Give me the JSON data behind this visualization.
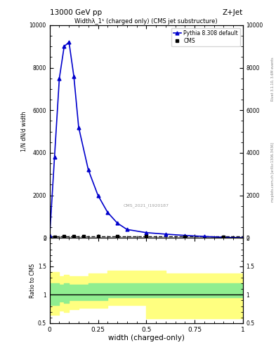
{
  "title_top": "13000 GeV pp",
  "title_right": "Z+Jet",
  "plot_title": "Widthλ_1¹ (charged only) (CMS jet substructure)",
  "cms_label": "CMS_2021_I1920187",
  "rivet_label": "Rivet 3.1.10, 3.6M events",
  "mcplots_label": "mcplots.cern.ch [arXiv:1306.3436]",
  "xlabel": "width (charged-only)",
  "ylabel": "1/N dN/d width",
  "xlim": [
    0,
    1
  ],
  "ylim_main": [
    0,
    10000
  ],
  "ylim_ratio": [
    0.5,
    2.0
  ],
  "pythia_x": [
    0.0,
    0.025,
    0.05,
    0.075,
    0.1,
    0.125,
    0.15,
    0.2,
    0.25,
    0.3,
    0.35,
    0.4,
    0.5,
    0.6,
    0.7,
    0.8,
    0.9,
    1.0
  ],
  "pythia_y": [
    100,
    3800,
    7500,
    9000,
    9200,
    7600,
    5200,
    3200,
    2000,
    1200,
    700,
    400,
    250,
    180,
    120,
    70,
    30,
    10
  ],
  "cms_x": [
    0.025,
    0.075,
    0.125,
    0.175,
    0.25,
    0.35,
    0.5,
    0.7,
    0.9
  ],
  "cms_y": [
    60,
    75,
    85,
    90,
    88,
    82,
    78,
    58,
    38
  ],
  "pythia_color": "#0000cc",
  "cms_color": "#000000",
  "ratio_yellow_x": [
    0.0,
    0.05,
    0.075,
    0.1,
    0.15,
    0.2,
    0.3,
    0.5,
    0.6,
    1.0
  ],
  "ratio_yellow_low": [
    0.65,
    0.72,
    0.7,
    0.75,
    0.77,
    0.77,
    0.82,
    0.58,
    0.58,
    0.6
  ],
  "ratio_yellow_high": [
    1.4,
    1.32,
    1.35,
    1.32,
    1.32,
    1.38,
    1.42,
    1.42,
    1.38,
    1.38
  ],
  "ratio_green_x": [
    0.0,
    0.05,
    0.075,
    0.1,
    0.15,
    0.2,
    0.3,
    0.5,
    0.6,
    1.0
  ],
  "ratio_green_low": [
    0.82,
    0.88,
    0.86,
    0.9,
    0.9,
    0.9,
    0.95,
    0.95,
    0.95,
    0.95
  ],
  "ratio_green_high": [
    1.2,
    1.18,
    1.2,
    1.18,
    1.18,
    1.2,
    1.2,
    1.2,
    1.2,
    1.2
  ],
  "green_color": "#90ee90",
  "yellow_color": "#ffff80",
  "fig_width": 3.93,
  "fig_height": 5.12,
  "dpi": 100
}
